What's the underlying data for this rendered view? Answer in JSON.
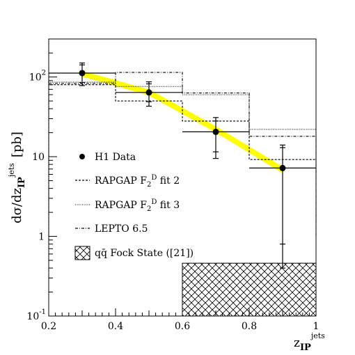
{
  "chart_data": {
    "type": "line",
    "ylabel": {
      "main": "dσ/dz",
      "sub": "IP",
      "sup": "jets",
      "unit": "[pb]"
    },
    "xlabel": {
      "main": "z",
      "sub": "IP",
      "sup": "jets"
    },
    "xlim": [
      0.2,
      1.0
    ],
    "ylim": [
      0.1,
      300
    ],
    "yscale": "log",
    "grid": false,
    "legend_position": "left-middle",
    "x_ticks": [
      {
        "v": 0.2,
        "label": "0.2"
      },
      {
        "v": 0.4,
        "label": "0.4"
      },
      {
        "v": 0.6,
        "label": "0.6"
      },
      {
        "v": 0.8,
        "label": "0.8"
      },
      {
        "v": 1.0,
        "label": "1"
      }
    ],
    "y_ticks": [
      {
        "v": 100,
        "base": "10",
        "exp": "2"
      },
      {
        "v": 10,
        "base": "10",
        "exp": ""
      },
      {
        "v": 1,
        "base": "1",
        "exp": ""
      },
      {
        "v": 0.1,
        "base": "10",
        "exp": "-1"
      }
    ],
    "series": [
      {
        "name": "H1 Data",
        "kind": "points",
        "points": [
          {
            "x": 0.3,
            "y": 112,
            "xerr": 0.1,
            "y_stat": [
              85,
              142
            ],
            "y_tot": [
              78,
              150
            ]
          },
          {
            "x": 0.5,
            "y": 64,
            "xerr": 0.1,
            "y_stat": [
              49,
              82
            ],
            "y_tot": [
              43,
              87
            ]
          },
          {
            "x": 0.7,
            "y": 20.5,
            "xerr": 0.1,
            "y_stat": [
              11.5,
              28
            ],
            "y_tot": [
              9.5,
              31
            ]
          },
          {
            "x": 0.9,
            "y": 7.2,
            "xerr": 0.1,
            "y_stat": [
              0.8,
              13
            ],
            "y_tot": [
              0.4,
              14
            ]
          }
        ]
      },
      {
        "name": "RAPGAP F",
        "name_sub": "2",
        "name_sup": "D",
        "name_suffix": " fit 2",
        "kind": "histogram",
        "dash": "dashed",
        "bins": [
          0.2,
          0.4,
          0.6,
          0.8,
          1.0
        ],
        "values": [
          80,
          50,
          28,
          9.2
        ],
        "start_y": 1
      },
      {
        "name": "RAPGAP F",
        "name_sub": "2",
        "name_sup": "D",
        "name_suffix": " fit 3",
        "kind": "histogram",
        "dash": "dotted",
        "bins": [
          0.2,
          0.4,
          0.6,
          0.8,
          1.0
        ],
        "values": [
          86,
          76,
          60,
          22
        ]
      },
      {
        "name": "LEPTO 6.5",
        "kind": "histogram",
        "dash": "dashdot",
        "bins": [
          0.2,
          0.4,
          0.6,
          0.8,
          1.0
        ],
        "values": [
          83,
          114,
          63,
          18
        ],
        "end_y": 1
      },
      {
        "name": "qq̄ Fock State ([21])",
        "kind": "hatched-histogram",
        "bins": [
          0.6,
          1.0
        ],
        "values": [
          0.46
        ]
      },
      {
        "name": "",
        "kind": "band",
        "color": "#ffff00",
        "x": [
          0.3,
          0.5,
          0.7,
          0.9
        ],
        "y": [
          110,
          64,
          22,
          6.8
        ]
      }
    ]
  }
}
